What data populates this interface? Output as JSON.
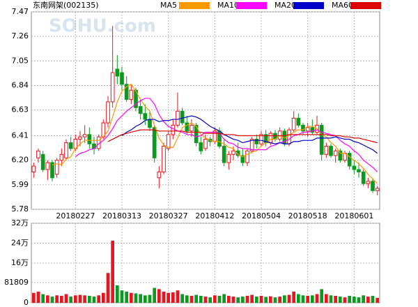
{
  "chart_data": {
    "type": "candlestick",
    "title": "东南网架(002135)",
    "watermark": "SOHU.com",
    "up_color": "#e8141e",
    "down_color": "#0a9a1e",
    "categories": [
      null,
      null,
      null,
      null,
      null,
      null,
      null,
      null,
      null,
      "20180227",
      null,
      null,
      null,
      null,
      null,
      null,
      null,
      null,
      null,
      "20180313",
      null,
      null,
      null,
      null,
      null,
      null,
      null,
      null,
      null,
      "20180327",
      null,
      null,
      null,
      null,
      null,
      null,
      null,
      null,
      null,
      "20180412",
      null,
      null,
      null,
      null,
      null,
      null,
      null,
      null,
      null,
      "20180504",
      null,
      null,
      null,
      null,
      null,
      null,
      null,
      null,
      null,
      "20180518",
      null,
      null,
      null,
      null,
      null,
      null,
      null,
      null,
      null,
      "20180601",
      null,
      null,
      null,
      null,
      null
    ],
    "open": [
      6.1,
      6.22,
      6.25,
      6.12,
      6.18,
      6.08,
      6.2,
      6.22,
      6.35,
      6.3,
      6.38,
      6.4,
      6.42,
      6.34,
      6.3,
      6.4,
      6.52,
      6.7,
      6.98,
      6.95,
      6.85,
      6.72,
      6.8,
      6.66,
      6.6,
      6.55,
      6.48,
      6.05,
      6.1,
      6.3,
      6.42,
      6.5,
      6.62,
      6.52,
      6.45,
      6.5,
      6.35,
      6.3,
      6.38,
      6.36,
      6.45,
      6.32,
      6.18,
      6.25,
      6.28,
      6.24,
      6.18,
      6.28,
      6.38,
      6.34,
      6.42,
      6.35,
      6.43,
      6.38,
      6.45,
      6.34,
      6.46,
      6.56,
      6.5,
      6.45,
      6.48,
      6.44,
      6.5,
      6.25,
      6.32,
      6.24,
      6.28,
      6.2,
      6.26,
      6.15,
      6.12,
      6.1,
      6.0,
      6.02,
      5.94
    ],
    "high": [
      6.18,
      6.3,
      6.28,
      6.2,
      6.2,
      6.22,
      6.3,
      6.38,
      6.4,
      6.42,
      6.45,
      6.5,
      6.48,
      6.4,
      6.42,
      6.55,
      6.75,
      7.35,
      7.1,
      7.0,
      6.92,
      6.85,
      6.82,
      6.72,
      6.68,
      6.62,
      6.5,
      6.15,
      6.35,
      6.45,
      6.55,
      6.78,
      6.65,
      6.58,
      6.55,
      6.52,
      6.4,
      6.42,
      6.4,
      6.48,
      6.48,
      6.38,
      6.28,
      6.32,
      6.35,
      6.3,
      6.3,
      6.4,
      6.42,
      6.45,
      6.46,
      6.45,
      6.46,
      6.48,
      6.47,
      6.48,
      6.62,
      6.6,
      6.52,
      6.52,
      6.55,
      6.58,
      6.52,
      6.35,
      6.34,
      6.3,
      6.3,
      6.28,
      6.28,
      6.2,
      6.18,
      6.12,
      6.05,
      6.04,
      5.98
    ],
    "low": [
      6.05,
      6.18,
      6.1,
      6.03,
      6.02,
      6.05,
      6.15,
      6.2,
      6.28,
      6.28,
      6.32,
      6.35,
      6.3,
      6.25,
      6.28,
      6.38,
      6.48,
      6.65,
      6.85,
      6.8,
      6.7,
      6.68,
      6.62,
      6.55,
      6.5,
      6.45,
      6.18,
      5.96,
      6.08,
      6.28,
      6.38,
      6.48,
      6.5,
      6.42,
      6.4,
      6.32,
      6.25,
      6.28,
      6.32,
      6.34,
      6.3,
      6.15,
      6.12,
      6.2,
      6.22,
      6.15,
      6.15,
      6.26,
      6.3,
      6.32,
      6.32,
      6.33,
      6.36,
      6.36,
      6.32,
      6.32,
      6.44,
      6.48,
      6.42,
      6.4,
      6.42,
      6.42,
      6.2,
      6.22,
      6.22,
      6.18,
      6.18,
      6.18,
      6.12,
      6.08,
      6.05,
      5.98,
      5.96,
      5.92,
      5.9
    ],
    "close": [
      6.15,
      6.28,
      6.12,
      6.18,
      6.05,
      6.2,
      6.25,
      6.35,
      6.3,
      6.38,
      6.4,
      6.42,
      6.34,
      6.3,
      6.4,
      6.52,
      6.7,
      6.95,
      6.92,
      6.85,
      6.72,
      6.8,
      6.65,
      6.6,
      6.55,
      6.48,
      6.22,
      6.1,
      6.32,
      6.42,
      6.5,
      6.62,
      6.52,
      6.45,
      6.5,
      6.35,
      6.28,
      6.38,
      6.36,
      6.45,
      6.32,
      6.18,
      6.25,
      6.28,
      6.24,
      6.18,
      6.28,
      6.38,
      6.34,
      6.42,
      6.35,
      6.43,
      6.38,
      6.45,
      6.34,
      6.46,
      6.56,
      6.5,
      6.45,
      6.48,
      6.44,
      6.5,
      6.25,
      6.32,
      6.24,
      6.28,
      6.2,
      6.26,
      6.15,
      6.12,
      6.1,
      6.0,
      6.02,
      5.94,
      5.96
    ],
    "volume": [
      40000,
      45000,
      35000,
      30000,
      25000,
      30000,
      28000,
      35000,
      25000,
      30000,
      32000,
      30000,
      28000,
      25000,
      30000,
      40000,
      120000,
      250000,
      70000,
      50000,
      45000,
      40000,
      38000,
      35000,
      30000,
      32000,
      60000,
      55000,
      45000,
      40000,
      42000,
      50000,
      35000,
      30000,
      28000,
      32000,
      28000,
      25000,
      22000,
      30000,
      28000,
      35000,
      28000,
      25000,
      22000,
      25000,
      28000,
      32000,
      25000,
      28000,
      24000,
      26000,
      22000,
      25000,
      30000,
      32000,
      45000,
      35000,
      30000,
      28000,
      30000,
      35000,
      55000,
      35000,
      30000,
      28000,
      25000,
      22000,
      28000,
      25000,
      22000,
      30000,
      25000,
      28000,
      20000
    ],
    "series": [
      {
        "name": "MA5",
        "color": "#ff9900",
        "values": [
          null,
          null,
          null,
          null,
          6.16,
          6.17,
          6.16,
          6.21,
          6.23,
          6.3,
          6.34,
          6.37,
          6.37,
          6.37,
          6.37,
          6.4,
          6.45,
          6.57,
          6.7,
          6.79,
          6.83,
          6.85,
          6.79,
          6.72,
          6.66,
          6.62,
          6.5,
          6.39,
          6.33,
          6.31,
          6.31,
          6.39,
          6.48,
          6.5,
          6.52,
          6.49,
          6.42,
          6.39,
          6.37,
          6.36,
          6.36,
          6.34,
          6.31,
          6.3,
          6.25,
          6.23,
          6.25,
          6.27,
          6.28,
          6.32,
          6.35,
          6.38,
          6.38,
          6.41,
          6.39,
          6.41,
          6.44,
          6.46,
          6.46,
          6.49,
          6.49,
          6.47,
          6.42,
          6.4,
          6.35,
          6.32,
          6.26,
          6.26,
          6.23,
          6.2,
          6.17,
          6.13,
          6.08,
          6.04,
          6.0
        ]
      },
      {
        "name": "MA10",
        "color": "#ff00ff",
        "values": [
          null,
          null,
          null,
          null,
          null,
          null,
          null,
          null,
          null,
          6.23,
          6.26,
          6.27,
          6.29,
          6.3,
          6.34,
          6.37,
          6.41,
          6.47,
          6.54,
          6.58,
          6.62,
          6.65,
          6.68,
          6.71,
          6.73,
          6.73,
          6.68,
          6.59,
          6.53,
          6.49,
          6.47,
          6.45,
          6.44,
          6.42,
          6.42,
          6.4,
          6.41,
          6.44,
          6.44,
          6.44,
          6.43,
          6.38,
          6.35,
          6.34,
          6.31,
          6.3,
          6.3,
          6.29,
          6.29,
          6.29,
          6.29,
          6.32,
          6.33,
          6.35,
          6.36,
          6.38,
          6.41,
          6.42,
          6.44,
          6.44,
          6.45,
          6.46,
          6.44,
          6.43,
          6.42,
          6.41,
          6.37,
          6.34,
          6.32,
          6.28,
          6.25,
          6.2,
          6.17,
          6.14,
          6.1
        ]
      },
      {
        "name": "MA20",
        "color": "#0000cc",
        "values": [
          null,
          null,
          null,
          null,
          null,
          null,
          null,
          null,
          null,
          null,
          null,
          null,
          null,
          null,
          null,
          null,
          null,
          null,
          null,
          6.41,
          6.44,
          6.46,
          6.49,
          6.51,
          6.54,
          6.55,
          6.55,
          6.53,
          6.54,
          6.54,
          6.55,
          6.55,
          6.56,
          6.57,
          6.58,
          6.57,
          6.55,
          6.52,
          6.49,
          6.47,
          6.45,
          6.42,
          6.4,
          6.38,
          6.37,
          6.35,
          6.36,
          6.37,
          6.37,
          6.37,
          6.36,
          6.35,
          6.34,
          6.35,
          6.34,
          6.34,
          6.36,
          6.36,
          6.37,
          6.37,
          6.37,
          6.39,
          6.39,
          6.39,
          6.39,
          6.4,
          6.39,
          6.38,
          6.38,
          6.36,
          6.35,
          6.33,
          6.31,
          6.29,
          6.26
        ]
      },
      {
        "name": "MA60",
        "color": "#dd0000",
        "values": [
          null,
          null,
          null,
          null,
          null,
          null,
          null,
          null,
          null,
          null,
          null,
          null,
          null,
          null,
          null,
          null,
          6.36,
          6.38,
          6.4,
          6.42,
          6.43,
          6.44,
          6.45,
          6.46,
          6.46,
          6.46,
          6.46,
          6.45,
          6.45,
          6.45,
          6.45,
          6.45,
          6.45,
          6.44,
          6.44,
          6.44,
          6.44,
          6.43,
          6.43,
          6.43,
          6.43,
          6.42,
          6.42,
          6.42,
          6.41,
          6.41,
          6.41,
          6.41,
          6.41,
          6.41,
          6.41,
          6.41,
          6.41,
          6.41,
          6.41,
          6.42,
          6.42,
          6.42,
          6.42,
          6.42,
          6.42,
          6.42,
          6.42,
          6.42,
          6.41,
          6.41,
          6.41,
          6.4,
          6.4,
          6.39,
          6.39,
          6.38,
          6.37,
          6.36,
          6.35
        ]
      }
    ],
    "ylim": [
      5.78,
      7.47
    ],
    "yticks": [
      5.78,
      5.99,
      {
        "value": 6.2,
        "label": "6.20"
      },
      6.41,
      6.63,
      6.84,
      7.05,
      7.26,
      7.47
    ],
    "vlim": [
      0,
      320000
    ],
    "vticks": [
      0,
      81809,
      {
        "value": 160000,
        "label": "16万"
      },
      {
        "value": 240000,
        "label": "24万"
      },
      {
        "value": 320000,
        "label": "32万"
      }
    ],
    "grid": true
  }
}
